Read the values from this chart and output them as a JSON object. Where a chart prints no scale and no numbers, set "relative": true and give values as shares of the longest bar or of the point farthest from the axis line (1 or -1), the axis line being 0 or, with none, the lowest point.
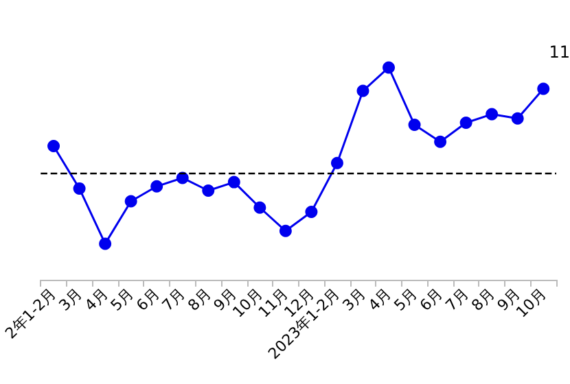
{
  "chart_data": {
    "type": "line",
    "relative": true,
    "categories": [
      "2年1-2月",
      "3月",
      "4月",
      "5月",
      "6月",
      "7月",
      "8月",
      "9月",
      "10月",
      "11月",
      "12月",
      "2023年1-2月",
      "3月",
      "4月",
      "5月",
      "6月",
      "7月",
      "8月",
      "9月",
      "10月"
    ],
    "series": [
      {
        "color": "#0000ee",
        "values": [
          0.63,
          0.43,
          0.17,
          0.37,
          0.44,
          0.48,
          0.42,
          0.46,
          0.34,
          0.23,
          0.32,
          0.55,
          0.89,
          1,
          0.73,
          0.65,
          0.74,
          0.78,
          0.76,
          0.9
        ]
      }
    ],
    "marker": "circle",
    "line_style": "solid",
    "grid": false,
    "ref_lines": [
      {
        "axis": "y",
        "value": 0.5,
        "color": "#000000",
        "line_style": "dashed"
      }
    ],
    "annotations": [
      "11"
    ]
  }
}
